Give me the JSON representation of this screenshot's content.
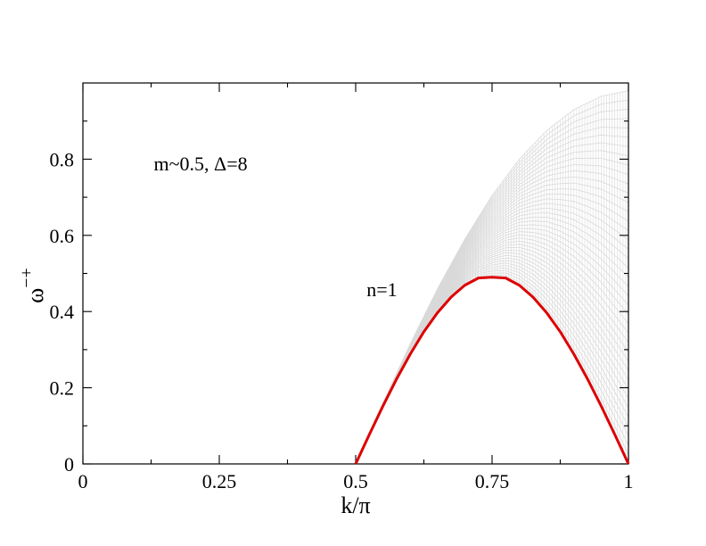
{
  "chart_data": {
    "type": "line",
    "xlabel": "k/π",
    "ylabel": "ω",
    "ylabel_superscript": "−+",
    "xlim": [
      0,
      1
    ],
    "ylim": [
      0,
      1
    ],
    "x_ticks": [
      {
        "value": 0,
        "label": "0"
      },
      {
        "value": 0.25,
        "label": "0.25"
      },
      {
        "value": 0.5,
        "label": "0.5"
      },
      {
        "value": 0.75,
        "label": "0.75"
      },
      {
        "value": 1,
        "label": "1"
      }
    ],
    "y_ticks": [
      {
        "value": 0,
        "label": "0"
      },
      {
        "value": 0.2,
        "label": "0.2"
      },
      {
        "value": 0.4,
        "label": "0.4"
      },
      {
        "value": 0.6,
        "label": "0.6"
      },
      {
        "value": 0.8,
        "label": "0.8"
      }
    ],
    "annotations": [
      {
        "text": "m~0.5, Δ=8",
        "x": 0.13,
        "y": 0.77
      },
      {
        "text": "n=1",
        "x": 0.52,
        "y": 0.44
      }
    ],
    "grid": false,
    "series": [
      {
        "color": "#d9d9d9",
        "role": "continuum upper edge",
        "x": [
          0.5,
          0.55,
          0.6,
          0.65,
          0.7,
          0.75,
          0.8,
          0.85,
          0.9,
          0.95,
          1.0
        ],
        "y": [
          0.0,
          0.16,
          0.315,
          0.46,
          0.59,
          0.705,
          0.8,
          0.875,
          0.93,
          0.965,
          0.98
        ]
      },
      {
        "name": "n=1",
        "color": "#dd0000",
        "x": [
          0.5,
          0.525,
          0.55,
          0.575,
          0.6,
          0.625,
          0.65,
          0.675,
          0.7,
          0.725,
          0.75,
          0.775,
          0.8,
          0.825,
          0.85,
          0.875,
          0.9,
          0.925,
          0.95,
          0.975,
          1.0
        ],
        "y": [
          0.0,
          0.077,
          0.152,
          0.223,
          0.288,
          0.347,
          0.397,
          0.438,
          0.469,
          0.488,
          0.49,
          0.488,
          0.469,
          0.438,
          0.397,
          0.347,
          0.288,
          0.223,
          0.152,
          0.077,
          0.0
        ]
      }
    ]
  }
}
